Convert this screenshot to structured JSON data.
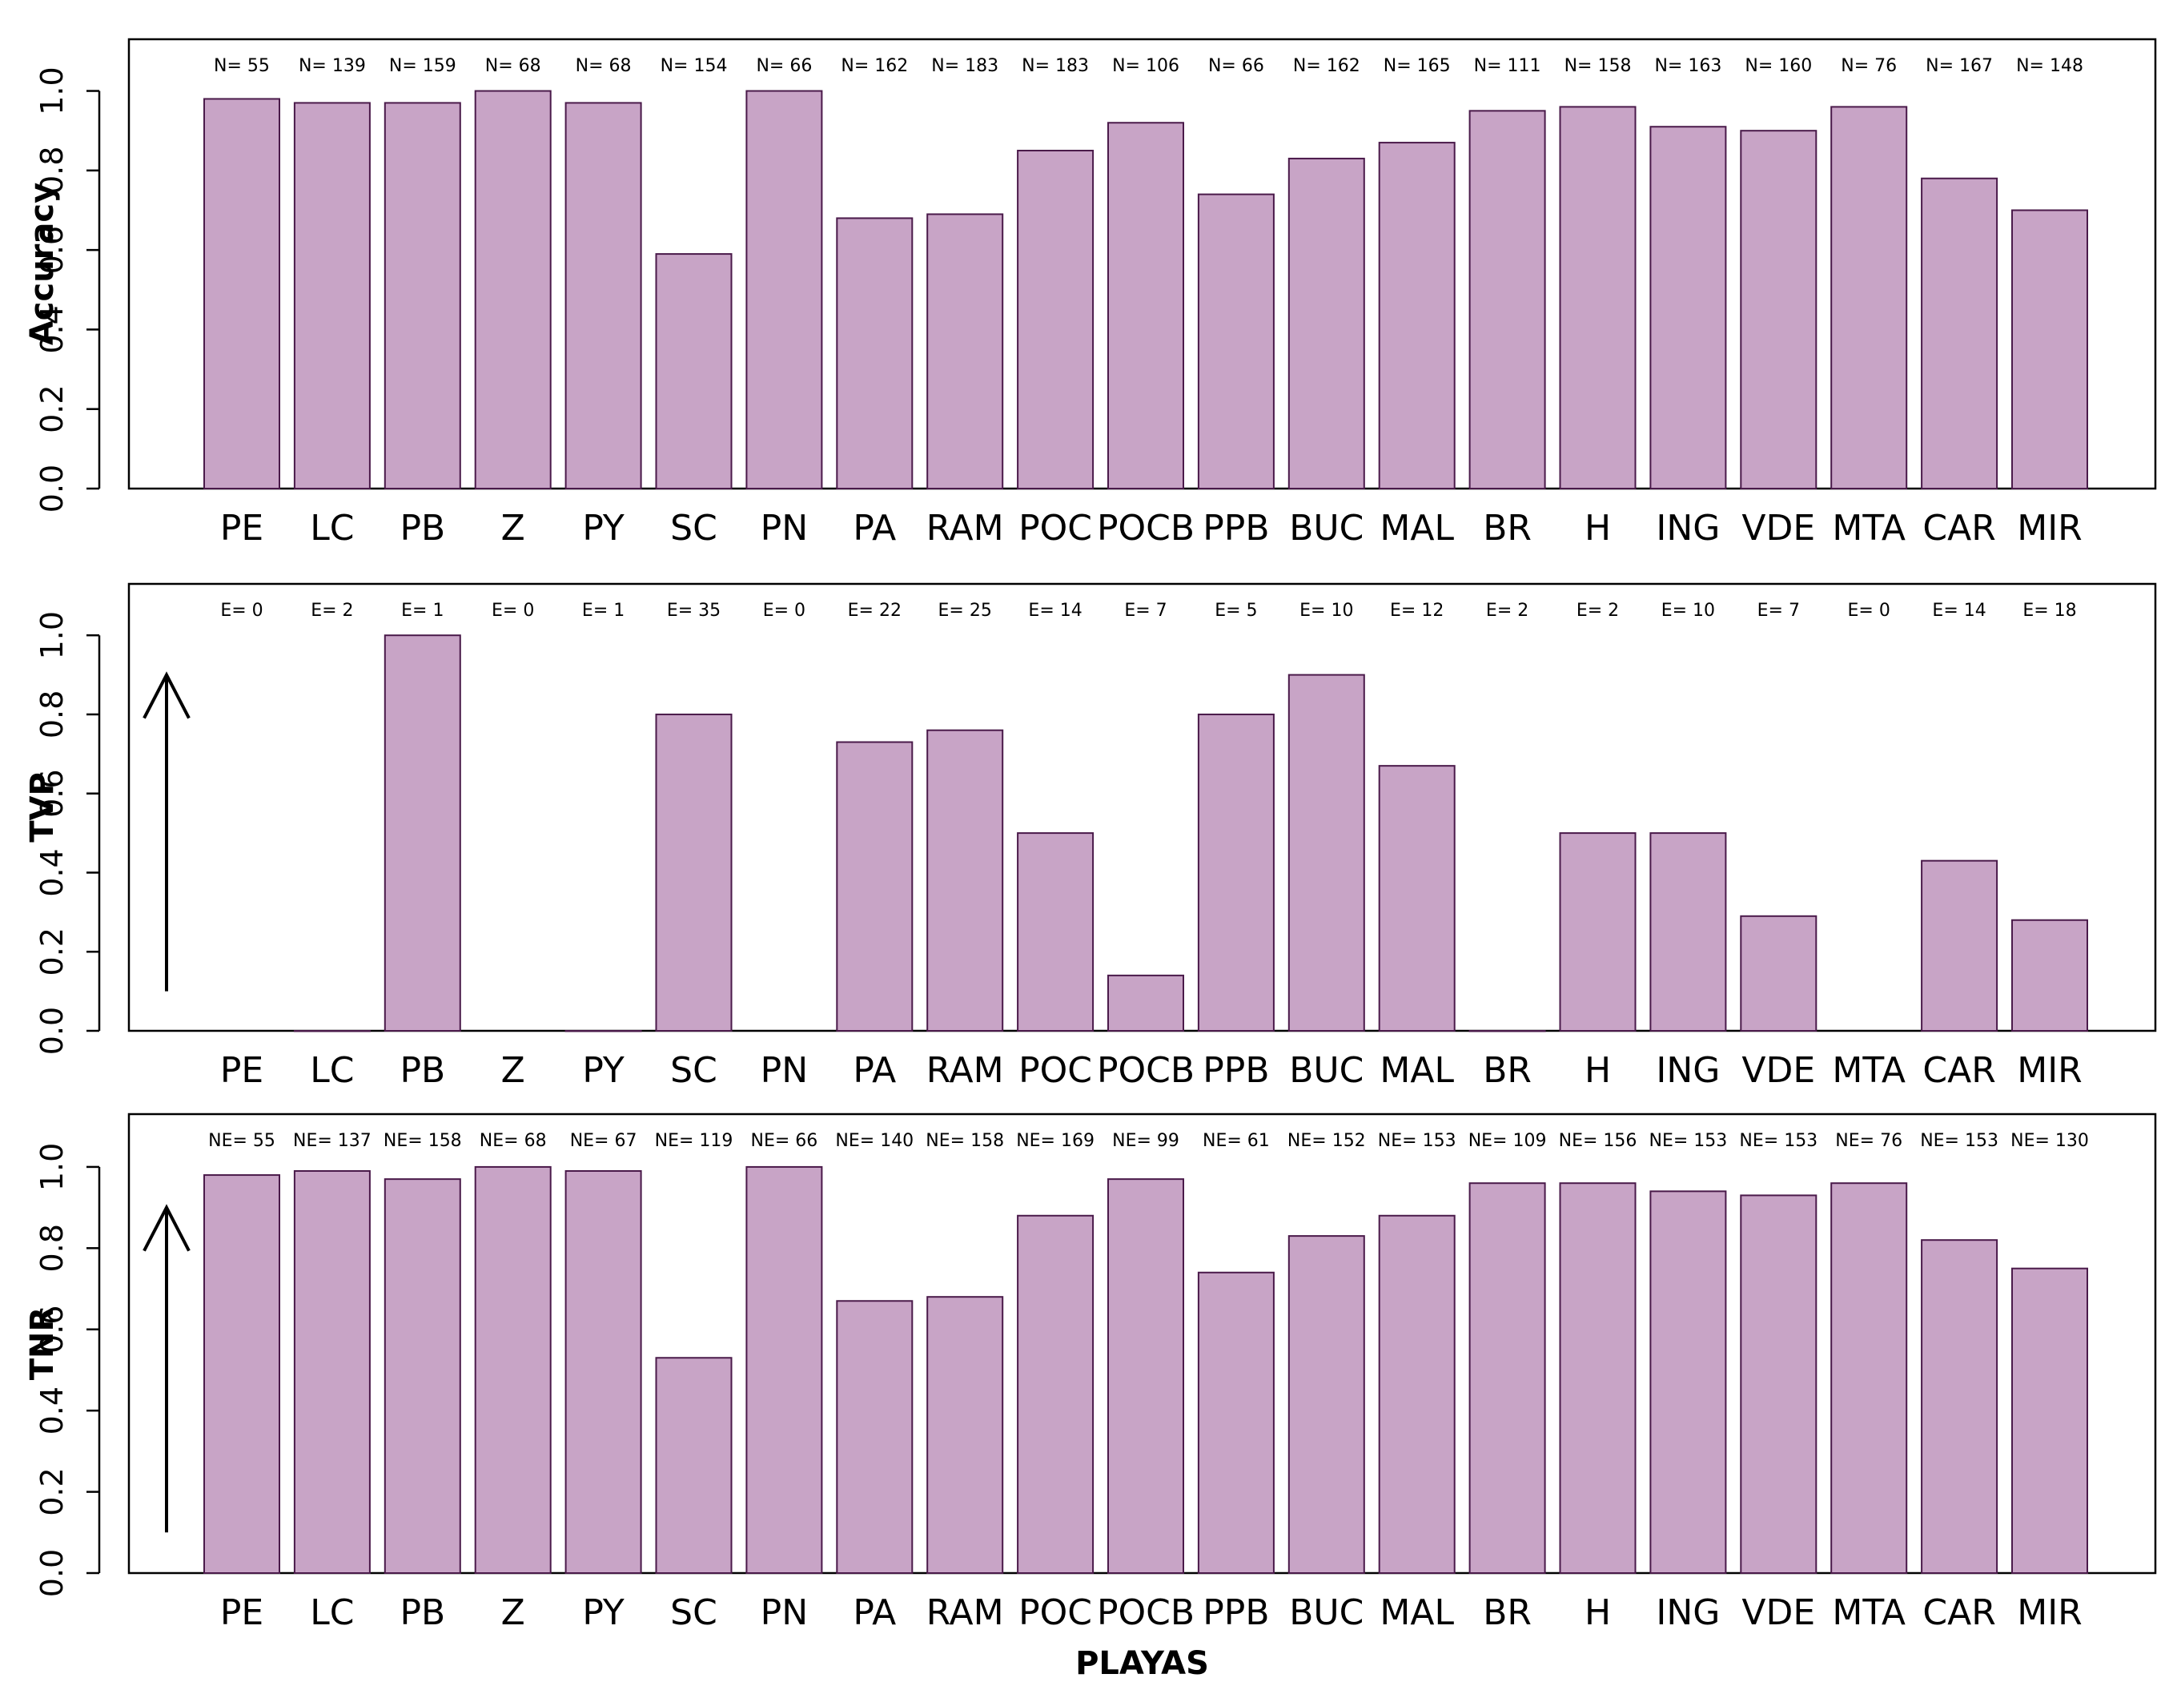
{
  "chart_data": [
    {
      "type": "bar",
      "ylabel": "Accuracy",
      "ylim": [
        0,
        1.13
      ],
      "yticks": [
        "0.0",
        "0.2",
        "0.4",
        "0.6",
        "0.8",
        "1.0"
      ],
      "categories": [
        "PE",
        "LC",
        "PB",
        "Z",
        "PY",
        "SC",
        "PN",
        "PA",
        "RAM",
        "POC",
        "POCB",
        "PPB",
        "BUC",
        "MAL",
        "BR",
        "H",
        "ING",
        "VDE",
        "MTA",
        "CAR",
        "MIR"
      ],
      "values": [
        0.98,
        0.97,
        0.97,
        1.0,
        0.97,
        0.59,
        1.0,
        0.68,
        0.69,
        0.85,
        0.92,
        0.74,
        0.83,
        0.87,
        0.95,
        0.96,
        0.91,
        0.9,
        0.96,
        0.78,
        0.7
      ],
      "annotations": [
        "N= 55",
        "N= 139",
        "N= 159",
        "N= 68",
        "N= 68",
        "N= 154",
        "N= 66",
        "N= 162",
        "N= 183",
        "N= 183",
        "N= 106",
        "N= 66",
        "N= 162",
        "N= 165",
        "N= 111",
        "N= 158",
        "N= 163",
        "N= 160",
        "N= 76",
        "N= 167",
        "N= 148"
      ],
      "arrow": false
    },
    {
      "type": "bar",
      "ylabel": "TVP",
      "ylim": [
        0,
        1.13
      ],
      "yticks": [
        "0.0",
        "0.2",
        "0.4",
        "0.6",
        "0.8",
        "1.0"
      ],
      "categories": [
        "PE",
        "LC",
        "PB",
        "Z",
        "PY",
        "SC",
        "PN",
        "PA",
        "RAM",
        "POC",
        "POCB",
        "PPB",
        "BUC",
        "MAL",
        "BR",
        "H",
        "ING",
        "VDE",
        "MTA",
        "CAR",
        "MIR"
      ],
      "values": [
        null,
        0,
        1.0,
        null,
        0,
        0.8,
        null,
        0.73,
        0.76,
        0.5,
        0.14,
        0.8,
        0.9,
        0.67,
        0,
        0.5,
        0.5,
        0.29,
        null,
        0.43,
        0.28
      ],
      "annotations": [
        "E= 0",
        "E= 2",
        "E= 1",
        "E= 0",
        "E= 1",
        "E= 35",
        "E= 0",
        "E= 22",
        "E= 25",
        "E= 14",
        "E= 7",
        "E= 5",
        "E= 10",
        "E= 12",
        "E= 2",
        "E= 2",
        "E= 10",
        "E= 7",
        "E= 0",
        "E= 14",
        "E= 18"
      ],
      "arrow": true
    },
    {
      "type": "bar",
      "ylabel": "TNR",
      "xlabel": "PLAYAS",
      "ylim": [
        0,
        1.13
      ],
      "yticks": [
        "0.0",
        "0.2",
        "0.4",
        "0.6",
        "0.8",
        "1.0"
      ],
      "categories": [
        "PE",
        "LC",
        "PB",
        "Z",
        "PY",
        "SC",
        "PN",
        "PA",
        "RAM",
        "POC",
        "POCB",
        "PPB",
        "BUC",
        "MAL",
        "BR",
        "H",
        "ING",
        "VDE",
        "MTA",
        "CAR",
        "MIR"
      ],
      "values": [
        0.98,
        0.99,
        0.97,
        1.0,
        0.99,
        0.53,
        1.0,
        0.67,
        0.68,
        0.88,
        0.97,
        0.74,
        0.83,
        0.88,
        0.96,
        0.96,
        0.94,
        0.93,
        0.96,
        0.82,
        0.75
      ],
      "annotations": [
        "NE= 55",
        "NE= 137",
        "NE= 158",
        "NE= 68",
        "NE= 67",
        "NE= 119",
        "NE= 66",
        "NE= 140",
        "NE= 158",
        "NE= 169",
        "NE= 99",
        "NE= 61",
        "NE= 152",
        "NE= 153",
        "NE= 109",
        "NE= 156",
        "NE= 153",
        "NE= 153",
        "NE= 76",
        "NE= 153",
        "NE= 130"
      ],
      "arrow": true
    }
  ],
  "colors": {
    "bar_fill": "#c8a4c6",
    "bar_stroke": "#4a1a4a"
  }
}
